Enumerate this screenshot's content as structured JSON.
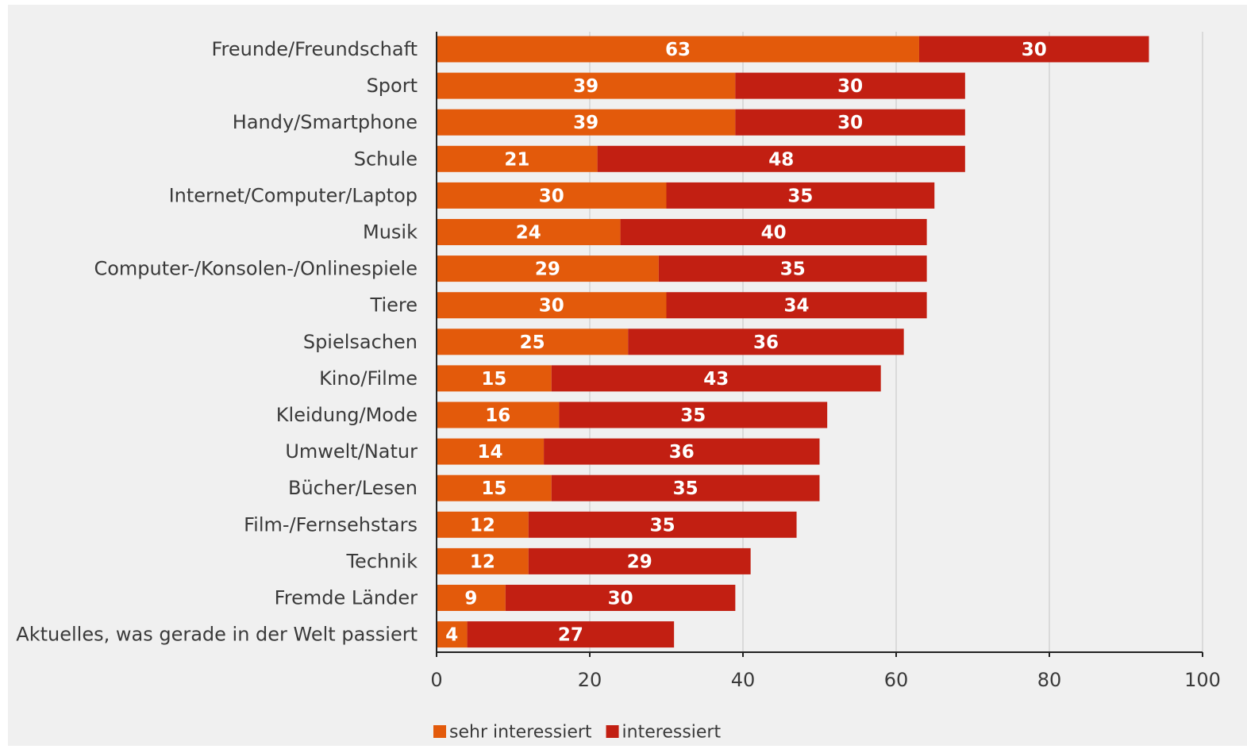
{
  "chart_data": {
    "type": "bar",
    "orientation": "horizontal",
    "stacked": true,
    "title": "",
    "xlabel": "",
    "ylabel": "",
    "xlim": [
      0,
      100
    ],
    "xticks": [
      0,
      20,
      40,
      60,
      80,
      100
    ],
    "grid": true,
    "legend_position": "bottom",
    "categories": [
      "Freunde/Freundschaft",
      "Sport",
      "Handy/Smartphone",
      "Schule",
      "Internet/Computer/Laptop",
      "Musik",
      "Computer-/Konsolen-/Onlinespiele",
      "Tiere",
      "Spielsachen",
      "Kino/Filme",
      "Kleidung/Mode",
      "Umwelt/Natur",
      "Bücher/Lesen",
      "Film-/Fernsehstars",
      "Technik",
      "Fremde Länder",
      "Aktuelles, was gerade in der Welt passiert"
    ],
    "series": [
      {
        "name": "sehr interessiert",
        "color": "#e35a0b",
        "values": [
          63,
          39,
          39,
          21,
          30,
          24,
          29,
          30,
          25,
          15,
          16,
          14,
          15,
          12,
          12,
          9,
          4
        ]
      },
      {
        "name": "interessiert",
        "color": "#c21f12",
        "values": [
          30,
          30,
          30,
          48,
          35,
          40,
          35,
          34,
          36,
          43,
          35,
          36,
          35,
          35,
          29,
          30,
          27
        ]
      }
    ]
  }
}
